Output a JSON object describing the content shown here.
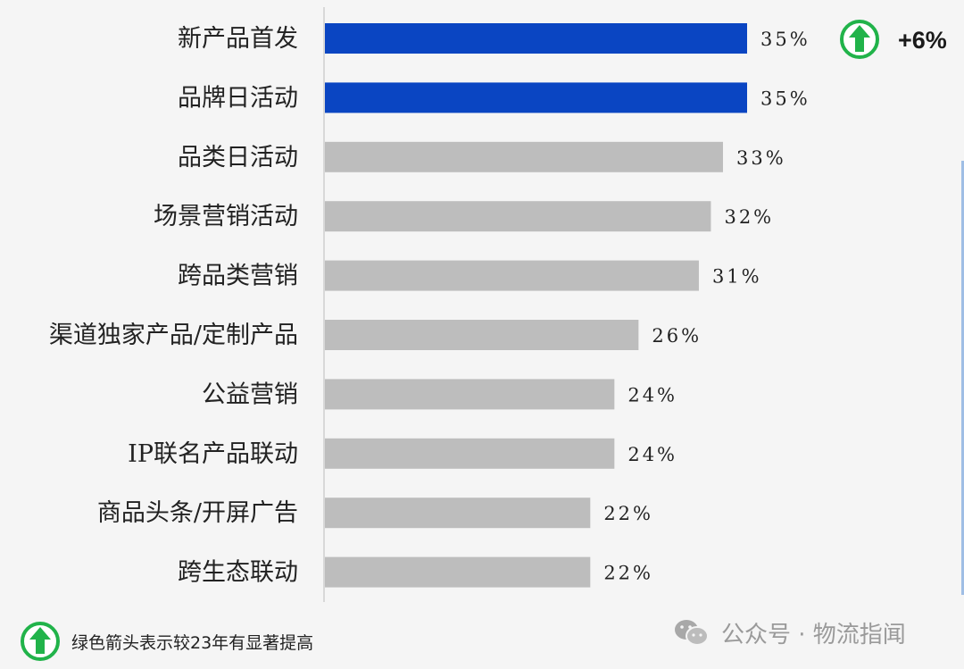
{
  "chart_data": {
    "type": "bar",
    "orientation": "horizontal",
    "categories": [
      "新产品首发",
      "品牌日活动",
      "品类日活动",
      "场景营销活动",
      "跨品类营销",
      "渠道独家产品/定制产品",
      "公益营销",
      "IP联名产品联动",
      "商品头条/开屏广告",
      "跨生态联动"
    ],
    "values": [
      35,
      35,
      33,
      32,
      31,
      26,
      24,
      24,
      22,
      22
    ],
    "value_labels": [
      "35%",
      "35%",
      "33%",
      "32%",
      "31%",
      "26%",
      "24%",
      "24%",
      "22%",
      "22%"
    ],
    "highlighted": [
      true,
      true,
      false,
      false,
      false,
      false,
      false,
      false,
      false,
      false
    ],
    "colors": {
      "highlight": "#0a45c2",
      "default": "#bdbdbd",
      "arrow": "#21b34a"
    },
    "xlim": [
      0,
      50
    ],
    "grid": false
  },
  "callout": {
    "text": "+6%",
    "icon": "green-up-arrow-icon"
  },
  "legend": {
    "text": "绿色箭头表示较23年有显著提高",
    "icon": "green-up-arrow-icon"
  },
  "watermark": {
    "text": "公众号 · 物流指闻",
    "icon": "wechat-icon"
  }
}
